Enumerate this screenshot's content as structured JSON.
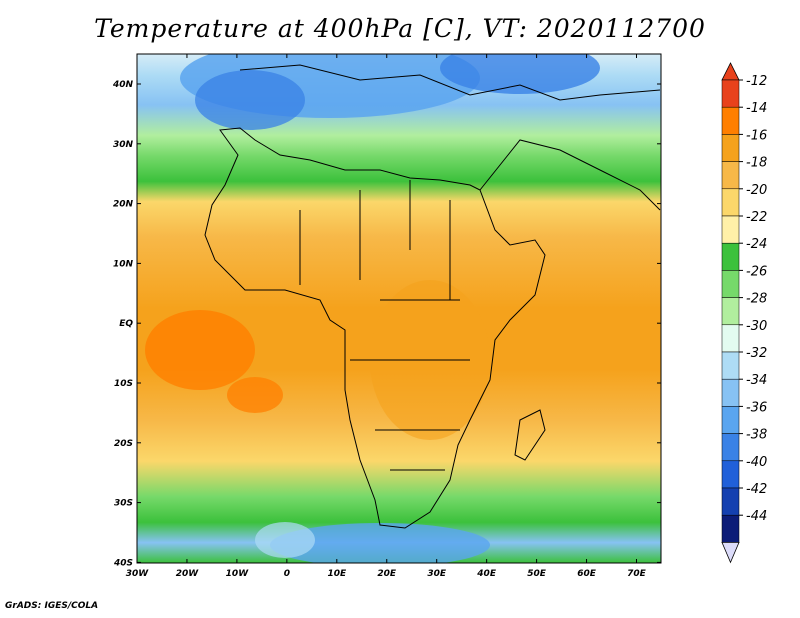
{
  "title": "Temperature at 400hPa [C], VT: 2020112700",
  "credit": "GrADS: IGES/COLA",
  "map": {
    "lon_range": [
      -30,
      75
    ],
    "lat_range": [
      -40,
      45
    ],
    "lon_ticks": [
      "30W",
      "20W",
      "10W",
      "0",
      "10E",
      "20E",
      "30E",
      "40E",
      "50E",
      "60E",
      "70E"
    ],
    "lat_ticks": [
      "40N",
      "30N",
      "20N",
      "10N",
      "EQ",
      "10S",
      "20S",
      "30S",
      "40S"
    ]
  },
  "colorbar": {
    "labels": [
      "-12",
      "-14",
      "-16",
      "-18",
      "-20",
      "-22",
      "-24",
      "-26",
      "-28",
      "-30",
      "-32",
      "-34",
      "-36",
      "-38",
      "-40",
      "-42",
      "-44"
    ],
    "colors": [
      "#e8421c",
      "#ff7f00",
      "#f5a21c",
      "#f7b848",
      "#fbd76a",
      "#fff0a8",
      "#3cc13c",
      "#76d96a",
      "#b1ee9e",
      "#e3fbf0",
      "#aedcf5",
      "#87c2f3",
      "#5aa5ef",
      "#3a82e6",
      "#2060d9",
      "#1440b0",
      "#0c1c78"
    ],
    "top_triangle_color": "#e8421c",
    "bottom_triangle_color": "#dcdcfa"
  }
}
